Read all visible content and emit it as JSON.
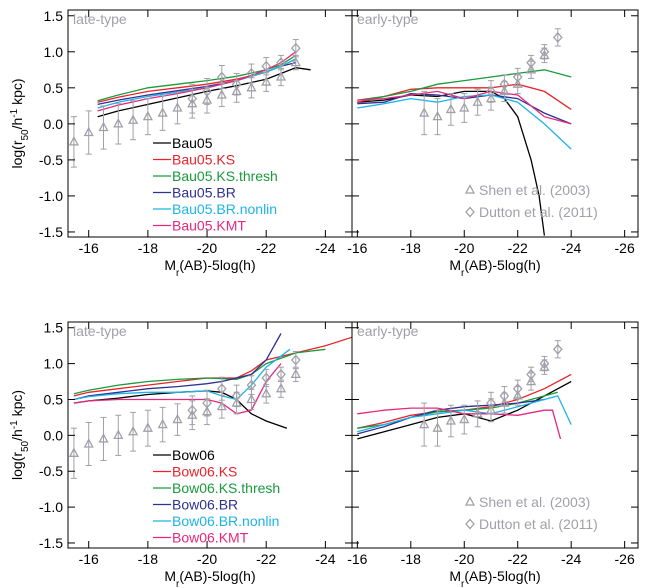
{
  "chart_data": [
    {
      "type": "line",
      "panel_label": "late-type",
      "xlim": [
        -15.3,
        -24.9
      ],
      "ylim": [
        -1.57,
        1.58
      ],
      "xticks": [
        -16,
        -18,
        -20,
        -22,
        -24
      ],
      "yticks": [
        -1.5,
        {
          "value": -1,
          "label": "-1.0"
        },
        -0.5,
        {
          "value": 0,
          "label": "0.0"
        },
        0.5,
        {
          "value": 1,
          "label": "1.0"
        },
        1.5
      ],
      "xlabel": [
        "M",
        "r",
        "(AB)-5log(h)"
      ],
      "ylabel": [
        "log(r",
        "50",
        "/h",
        "-1",
        " kpc)"
      ],
      "series": [
        {
          "name": "Bau05",
          "color": "#000000",
          "x": [
            -16.3,
            -17,
            -18,
            -19,
            -20,
            -21,
            -22,
            -23,
            -23.5
          ],
          "values": [
            0.1,
            0.18,
            0.27,
            0.36,
            0.45,
            0.53,
            0.62,
            0.78,
            0.75
          ]
        },
        {
          "name": "Bau05.KS",
          "color": "#e8242a",
          "x": [
            -16.3,
            -17,
            -18,
            -19,
            -20,
            -21,
            -22,
            -22.5,
            -23
          ],
          "values": [
            0.3,
            0.37,
            0.45,
            0.5,
            0.55,
            0.62,
            0.72,
            0.8,
            0.9
          ]
        },
        {
          "name": "Bau05.KS.thresh",
          "color": "#1a9a3c",
          "x": [
            -16.3,
            -17,
            -18,
            -19,
            -20,
            -21,
            -22,
            -22.5,
            -23
          ],
          "values": [
            0.32,
            0.4,
            0.5,
            0.55,
            0.6,
            0.66,
            0.75,
            0.82,
            0.95
          ]
        },
        {
          "name": "Bau05.BR",
          "color": "#2e3192",
          "x": [
            -16.3,
            -17,
            -18,
            -19,
            -20,
            -21,
            -22,
            -22.5,
            -23
          ],
          "values": [
            0.27,
            0.33,
            0.4,
            0.46,
            0.52,
            0.6,
            0.72,
            0.8,
            0.85
          ]
        },
        {
          "name": "Bau05.BR.nonlin",
          "color": "#1cb4e8",
          "x": [
            -16.3,
            -17,
            -18,
            -19,
            -20,
            -21,
            -22,
            -22.5,
            -23
          ],
          "values": [
            0.22,
            0.3,
            0.38,
            0.44,
            0.5,
            0.6,
            0.72,
            0.8,
            0.9
          ]
        },
        {
          "name": "Bau05.KMT",
          "color": "#e6287d",
          "x": [
            -16.3,
            -17,
            -18,
            -19,
            -20,
            -21,
            -22,
            -22.5,
            -23
          ],
          "values": [
            0.18,
            0.26,
            0.35,
            0.42,
            0.5,
            0.6,
            0.75,
            0.85,
            1.0
          ]
        }
      ],
      "observations": [
        {
          "marker": "triangle",
          "color": "#a0a0a8",
          "x": [
            -15.5,
            -16,
            -16.5,
            -17,
            -17.5,
            -18,
            -18.5,
            -19,
            -19.5,
            -20,
            -20.5,
            -21,
            -21.5,
            -22,
            -22.5,
            -23
          ],
          "values": [
            -0.25,
            -0.12,
            -0.05,
            0.0,
            0.05,
            0.1,
            0.15,
            0.22,
            0.28,
            0.33,
            0.4,
            0.45,
            0.5,
            0.58,
            0.65,
            0.85
          ],
          "errors": [
            0.35,
            0.3,
            0.3,
            0.28,
            0.27,
            0.25,
            0.24,
            0.22,
            0.2,
            0.18,
            0.16,
            0.15,
            0.14,
            0.13,
            0.12,
            0.1
          ]
        },
        {
          "marker": "diamond",
          "color": "#a0a0a8",
          "x": [
            -19.5,
            -20,
            -20.5,
            -21,
            -21.5,
            -22,
            -22.5,
            -23
          ],
          "values": [
            0.35,
            0.45,
            0.65,
            0.55,
            0.7,
            0.8,
            0.85,
            1.05
          ],
          "errors": [
            0.2,
            0.18,
            0.16,
            0.15,
            0.13,
            0.12,
            0.1,
            0.12
          ]
        }
      ]
    },
    {
      "type": "line",
      "panel_label": "early-type",
      "xlim": [
        -15.8,
        -26.5
      ],
      "ylim": [
        -1.57,
        1.58
      ],
      "xticks": [
        -16,
        -18,
        -20,
        -22,
        -24,
        -26
      ],
      "yticks": [
        -1.5,
        -1,
        -0.5,
        0,
        0.5,
        1,
        1.5
      ],
      "xlabel": [
        "M",
        "r",
        "(AB)-5log(h)"
      ],
      "series": [
        {
          "color": "#000000",
          "x": [
            -16,
            -17,
            -18,
            -19,
            -20,
            -21,
            -21.5,
            -22,
            -22.5,
            -22.8,
            -23
          ],
          "values": [
            0.3,
            0.33,
            0.4,
            0.38,
            0.45,
            0.45,
            0.35,
            0.1,
            -0.5,
            -1.0,
            -1.55
          ]
        },
        {
          "color": "#e8242a",
          "x": [
            -16,
            -17,
            -18,
            -19,
            -20,
            -21,
            -22,
            -23,
            -24
          ],
          "values": [
            0.3,
            0.38,
            0.48,
            0.5,
            0.5,
            0.5,
            0.55,
            0.45,
            0.2
          ]
        },
        {
          "color": "#1a9a3c",
          "x": [
            -16,
            -17,
            -18,
            -19,
            -20,
            -21,
            -22,
            -23,
            -24
          ],
          "values": [
            0.33,
            0.38,
            0.45,
            0.55,
            0.6,
            0.65,
            0.7,
            0.75,
            0.65
          ]
        },
        {
          "color": "#2e3192",
          "x": [
            -16,
            -17,
            -18,
            -19,
            -20,
            -21,
            -22,
            -23,
            -24
          ],
          "values": [
            0.28,
            0.3,
            0.42,
            0.4,
            0.35,
            0.4,
            0.35,
            0.15,
            0.0
          ]
        },
        {
          "color": "#1cb4e8",
          "x": [
            -16,
            -17,
            -18,
            -19,
            -20,
            -21,
            -22,
            -23,
            -24
          ],
          "values": [
            0.22,
            0.28,
            0.35,
            0.3,
            0.38,
            0.4,
            0.3,
            0.0,
            -0.35
          ]
        },
        {
          "color": "#e6287d",
          "x": [
            -16,
            -17,
            -18,
            -19,
            -20,
            -21,
            -22,
            -23,
            -24
          ],
          "values": [
            0.33,
            0.35,
            0.4,
            0.45,
            0.35,
            0.45,
            0.4,
            0.1,
            0.0
          ]
        }
      ],
      "observations": [
        {
          "name": "Shen et al. (2003)",
          "marker": "triangle",
          "color": "#a0a0a8",
          "x": [
            -18.5,
            -19,
            -19.5,
            -20,
            -20.5,
            -21,
            -21.5,
            -22,
            -22.5,
            -23
          ],
          "values": [
            0.15,
            0.1,
            0.2,
            0.22,
            0.3,
            0.35,
            0.45,
            0.55,
            0.75,
            0.95
          ],
          "errors": [
            0.3,
            0.25,
            0.22,
            0.2,
            0.18,
            0.16,
            0.14,
            0.13,
            0.12,
            0.1
          ]
        },
        {
          "name": "Dutton et al. (2011)",
          "marker": "diamond",
          "color": "#a0a0a8",
          "x": [
            -21,
            -21.5,
            -22,
            -22.5,
            -23,
            -23.5
          ],
          "values": [
            0.45,
            0.55,
            0.65,
            0.85,
            1.0,
            1.2
          ],
          "errors": [
            0.15,
            0.13,
            0.12,
            0.1,
            0.1,
            0.12
          ]
        }
      ]
    },
    {
      "type": "line",
      "panel_label": "late-type",
      "xlim": [
        -15.3,
        -24.9
      ],
      "ylim": [
        -1.57,
        1.58
      ],
      "xticks": [
        -16,
        -18,
        -20,
        -22,
        -24
      ],
      "yticks": [
        -1.5,
        {
          "value": -1,
          "label": "-1.0"
        },
        -0.5,
        {
          "value": 0,
          "label": "0.0"
        },
        0.5,
        {
          "value": 1,
          "label": "1.0"
        },
        1.5
      ],
      "xlabel": [
        "M",
        "r",
        "(AB)-5log(h)"
      ],
      "ylabel": [
        "log(r",
        "50",
        "/h",
        "-1",
        " kpc)"
      ],
      "series": [
        {
          "name": "Bow06",
          "color": "#000000",
          "x": [
            -15.5,
            -16,
            -17,
            -18,
            -19,
            -20,
            -20.5,
            -21,
            -21.5,
            -22,
            -22.7
          ],
          "values": [
            0.45,
            0.48,
            0.52,
            0.57,
            0.6,
            0.62,
            0.6,
            0.5,
            0.3,
            0.2,
            0.1
          ]
        },
        {
          "name": "Bow06.KS",
          "color": "#e8242a",
          "x": [
            -15.5,
            -16,
            -17,
            -18,
            -19,
            -20,
            -21,
            -21.5,
            -22,
            -23,
            -24,
            -25
          ],
          "values": [
            0.55,
            0.6,
            0.65,
            0.7,
            0.75,
            0.8,
            0.8,
            0.9,
            1.05,
            1.15,
            1.25,
            1.38
          ]
        },
        {
          "name": "Bow06.KS.thresh",
          "color": "#1a9a3c",
          "x": [
            -15.5,
            -16,
            -17,
            -18,
            -19,
            -20,
            -21,
            -21.5,
            -22,
            -23,
            -24
          ],
          "values": [
            0.58,
            0.63,
            0.7,
            0.75,
            0.78,
            0.8,
            0.78,
            0.85,
            1.0,
            1.15,
            1.2
          ]
        },
        {
          "name": "Bow06.BR",
          "color": "#2e3192",
          "x": [
            -15.5,
            -16,
            -17,
            -18,
            -19,
            -20,
            -20.5,
            -21,
            -21.5,
            -22,
            -22.5
          ],
          "values": [
            0.5,
            0.55,
            0.6,
            0.65,
            0.68,
            0.72,
            0.75,
            0.8,
            0.85,
            1.05,
            1.42
          ]
        },
        {
          "name": "Bow06.BR.nonlin",
          "color": "#1cb4e8",
          "x": [
            -15.5,
            -16,
            -17,
            -18,
            -19,
            -20,
            -20.5,
            -21,
            -21.5,
            -22,
            -22.8
          ],
          "values": [
            0.5,
            0.54,
            0.58,
            0.6,
            0.6,
            0.62,
            0.55,
            0.5,
            0.7,
            0.95,
            1.2
          ]
        },
        {
          "name": "Bow06.KMT",
          "color": "#e6287d",
          "x": [
            -15.5,
            -16,
            -17,
            -18,
            -19,
            -20,
            -20.5,
            -21,
            -21.5,
            -22,
            -22.5
          ],
          "values": [
            0.45,
            0.48,
            0.5,
            0.5,
            0.5,
            0.5,
            0.45,
            0.3,
            0.35,
            0.75,
            1.0
          ]
        }
      ],
      "observations": [
        {
          "marker": "triangle",
          "color": "#a0a0a8",
          "x": [
            -15.5,
            -16,
            -16.5,
            -17,
            -17.5,
            -18,
            -18.5,
            -19,
            -19.5,
            -20,
            -20.5,
            -21,
            -21.5,
            -22,
            -22.5,
            -23
          ],
          "values": [
            -0.25,
            -0.12,
            -0.05,
            0.0,
            0.05,
            0.1,
            0.15,
            0.22,
            0.28,
            0.33,
            0.4,
            0.45,
            0.5,
            0.58,
            0.65,
            0.85
          ],
          "errors": [
            0.35,
            0.3,
            0.3,
            0.28,
            0.27,
            0.25,
            0.24,
            0.22,
            0.2,
            0.18,
            0.16,
            0.15,
            0.14,
            0.13,
            0.12,
            0.1
          ]
        },
        {
          "marker": "diamond",
          "color": "#a0a0a8",
          "x": [
            -19.5,
            -20,
            -20.5,
            -21,
            -21.5,
            -22,
            -22.5,
            -23
          ],
          "values": [
            0.35,
            0.45,
            0.65,
            0.55,
            0.7,
            0.8,
            0.85,
            1.05
          ],
          "errors": [
            0.2,
            0.18,
            0.16,
            0.15,
            0.13,
            0.12,
            0.1,
            0.12
          ]
        }
      ]
    },
    {
      "type": "line",
      "panel_label": "early-type",
      "xlim": [
        -15.8,
        -26.5
      ],
      "ylim": [
        -1.57,
        1.58
      ],
      "xticks": [
        -16,
        -18,
        -20,
        -22,
        -24,
        -26
      ],
      "yticks": [
        -1.5,
        -1,
        -0.5,
        0,
        0.5,
        1,
        1.5
      ],
      "xlabel": [
        "M",
        "r",
        "(AB)-5log(h)"
      ],
      "series": [
        {
          "color": "#000000",
          "x": [
            -16,
            -17,
            -18,
            -19,
            -20,
            -21,
            -22,
            -23,
            -24
          ],
          "values": [
            -0.05,
            0.05,
            0.15,
            0.25,
            0.3,
            0.2,
            0.35,
            0.55,
            0.75
          ]
        },
        {
          "color": "#e8242a",
          "x": [
            -16,
            -17,
            -18,
            -19,
            -20,
            -21,
            -22,
            -23,
            -24
          ],
          "values": [
            0.1,
            0.18,
            0.28,
            0.33,
            0.35,
            0.4,
            0.5,
            0.65,
            0.85
          ]
        },
        {
          "color": "#1a9a3c",
          "x": [
            -16,
            -17,
            -18,
            -19,
            -20,
            -21,
            -22,
            -23,
            -23.5
          ],
          "values": [
            0.1,
            0.15,
            0.25,
            0.33,
            0.35,
            0.38,
            0.45,
            0.55,
            0.6
          ]
        },
        {
          "color": "#2e3192",
          "x": [
            -16,
            -17,
            -18,
            -19,
            -20,
            -21,
            -22,
            -23
          ],
          "values": [
            0.02,
            0.12,
            0.25,
            0.35,
            0.4,
            0.42,
            0.45,
            0.5
          ]
        },
        {
          "color": "#1cb4e8",
          "x": [
            -16,
            -17,
            -18,
            -19,
            -20,
            -21,
            -22,
            -23,
            -23.5,
            -24
          ],
          "values": [
            0.05,
            0.15,
            0.25,
            0.3,
            0.35,
            0.3,
            0.4,
            0.5,
            0.55,
            0.15
          ]
        },
        {
          "color": "#e6287d",
          "x": [
            -16,
            -17,
            -18,
            -19,
            -20,
            -21,
            -22,
            -23,
            -23.3,
            -23.6
          ],
          "values": [
            0.3,
            0.35,
            0.38,
            0.38,
            0.3,
            0.3,
            0.28,
            0.35,
            0.35,
            -0.05
          ]
        }
      ],
      "observations": [
        {
          "name": "Shen et al. (2003)",
          "marker": "triangle",
          "color": "#a0a0a8",
          "x": [
            -18.5,
            -19,
            -19.5,
            -20,
            -20.5,
            -21,
            -21.5,
            -22,
            -22.5,
            -23
          ],
          "values": [
            0.15,
            0.1,
            0.2,
            0.22,
            0.3,
            0.35,
            0.45,
            0.55,
            0.75,
            0.95
          ],
          "errors": [
            0.3,
            0.25,
            0.22,
            0.2,
            0.18,
            0.16,
            0.14,
            0.13,
            0.12,
            0.1
          ]
        },
        {
          "name": "Dutton et al. (2011)",
          "marker": "diamond",
          "color": "#a0a0a8",
          "x": [
            -21,
            -21.5,
            -22,
            -22.5,
            -23,
            -23.5
          ],
          "values": [
            0.45,
            0.55,
            0.65,
            0.85,
            1.0,
            1.2
          ],
          "errors": [
            0.15,
            0.13,
            0.12,
            0.1,
            0.1,
            0.12
          ]
        }
      ]
    }
  ]
}
